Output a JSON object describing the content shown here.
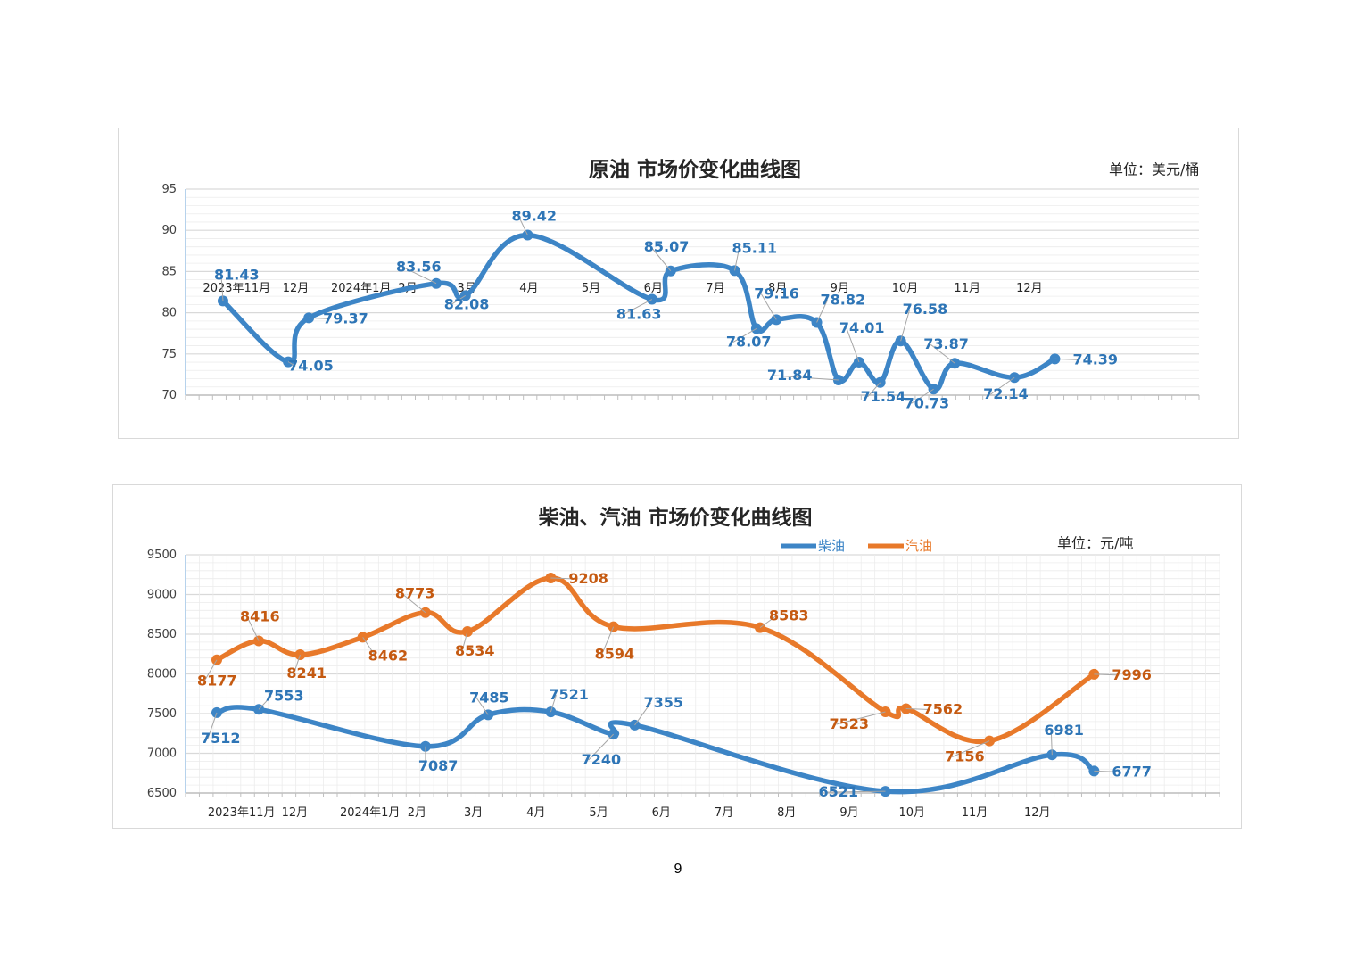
{
  "page_number": "9",
  "colors": {
    "crude": "#3d85c6",
    "diesel": "#3d85c6",
    "gasoline": "#e8792a",
    "grid_major": "#d9d9d9",
    "grid_minor": "#ececec",
    "axis": "#9dc3e6"
  },
  "chart_data": [
    {
      "type": "line",
      "title": "原油  市场价变化曲线图",
      "unit": "单位：美元/桶",
      "ylim": [
        70,
        95
      ],
      "yticks": [
        70,
        75,
        80,
        85,
        90,
        95
      ],
      "x_labels": [
        "2023年11月",
        "12月",
        "2024年1月",
        "2月",
        "3月",
        "4月",
        "5月",
        "6月",
        "7月",
        "8月",
        "9月",
        "10月",
        "11月",
        "12月"
      ],
      "grid": true,
      "legend": "none",
      "series": [
        {
          "color": "#3d85c6",
          "points": [
            {
              "x": 0.1,
              "y": 81.43,
              "label": "81.43"
            },
            {
              "x": 1.15,
              "y": 74.05,
              "label": "74.05"
            },
            {
              "x": 1.48,
              "y": 79.37,
              "label": "79.37"
            },
            {
              "x": 3.53,
              "y": 83.56,
              "label": "83.56"
            },
            {
              "x": 4.0,
              "y": 82.08,
              "label": "82.08"
            },
            {
              "x": 5.0,
              "y": 89.42,
              "label": "89.42"
            },
            {
              "x": 7.0,
              "y": 81.63,
              "label": "81.63"
            },
            {
              "x": 7.3,
              "y": 85.07,
              "label": "85.07"
            },
            {
              "x": 8.33,
              "y": 85.11,
              "label": "85.11"
            },
            {
              "x": 8.68,
              "y": 78.07,
              "label": "78.07"
            },
            {
              "x": 9.0,
              "y": 79.16,
              "label": "79.16"
            },
            {
              "x": 9.65,
              "y": 78.82,
              "label": "78.82"
            },
            {
              "x": 10.0,
              "y": 71.84,
              "label": "71.84"
            },
            {
              "x": 10.33,
              "y": 74.01,
              "label": "74.01"
            },
            {
              "x": 10.67,
              "y": 71.54,
              "label": "71.54"
            },
            {
              "x": 11.0,
              "y": 76.58,
              "label": "76.58"
            },
            {
              "x": 11.53,
              "y": 70.73,
              "label": "70.73"
            },
            {
              "x": 11.87,
              "y": 73.87,
              "label": "73.87"
            },
            {
              "x": 12.83,
              "y": 72.14,
              "label": "72.14"
            },
            {
              "x": 13.48,
              "y": 74.39,
              "label": "74.39"
            }
          ]
        }
      ]
    },
    {
      "type": "line",
      "title": "柴油、汽油  市场价变化曲线图",
      "unit": "单位：元/吨",
      "ylim": [
        6500,
        9500
      ],
      "yticks": [
        6500,
        7000,
        7500,
        8000,
        8500,
        9000,
        9500
      ],
      "x_labels": [
        "2023年11月",
        "12月",
        "2024年1月",
        "2月",
        "3月",
        "4月",
        "5月",
        "6月",
        "7月",
        "8月",
        "9月",
        "10月",
        "11月",
        "12月"
      ],
      "grid": true,
      "legend": "top-right",
      "series": [
        {
          "name": "柴油",
          "color": "#3d85c6",
          "points": [
            {
              "x": 0.0,
              "y": 7512,
              "label": "7512"
            },
            {
              "x": 0.67,
              "y": 7553,
              "label": "7553"
            },
            {
              "x": 3.33,
              "y": 7087,
              "label": "7087"
            },
            {
              "x": 4.33,
              "y": 7485,
              "label": "7485"
            },
            {
              "x": 5.33,
              "y": 7521,
              "label": "7521"
            },
            {
              "x": 6.33,
              "y": 7240,
              "label": "7240"
            },
            {
              "x": 6.67,
              "y": 7355,
              "label": "7355"
            },
            {
              "x": 10.67,
              "y": 6521,
              "label": "6521"
            },
            {
              "x": 13.33,
              "y": 6981,
              "label": "6981"
            },
            {
              "x": 14.0,
              "y": 6777,
              "label": "6777"
            }
          ]
        },
        {
          "name": "汽油",
          "color": "#e8792a",
          "points": [
            {
              "x": 0.0,
              "y": 8177,
              "label": "8177"
            },
            {
              "x": 0.67,
              "y": 8416,
              "label": "8416"
            },
            {
              "x": 1.33,
              "y": 8241,
              "label": "8241"
            },
            {
              "x": 2.33,
              "y": 8462,
              "label": "8462"
            },
            {
              "x": 3.33,
              "y": 8773,
              "label": "8773"
            },
            {
              "x": 4.0,
              "y": 8534,
              "label": "8534"
            },
            {
              "x": 5.33,
              "y": 9208,
              "label": "9208"
            },
            {
              "x": 6.33,
              "y": 8594,
              "label": "8594"
            },
            {
              "x": 8.67,
              "y": 8583,
              "label": "8583"
            },
            {
              "x": 10.67,
              "y": 7523,
              "label": "7523"
            },
            {
              "x": 11.0,
              "y": 7562,
              "label": "7562"
            },
            {
              "x": 12.33,
              "y": 7156,
              "label": "7156"
            },
            {
              "x": 14.0,
              "y": 7996,
              "label": "7996"
            }
          ]
        }
      ]
    }
  ]
}
